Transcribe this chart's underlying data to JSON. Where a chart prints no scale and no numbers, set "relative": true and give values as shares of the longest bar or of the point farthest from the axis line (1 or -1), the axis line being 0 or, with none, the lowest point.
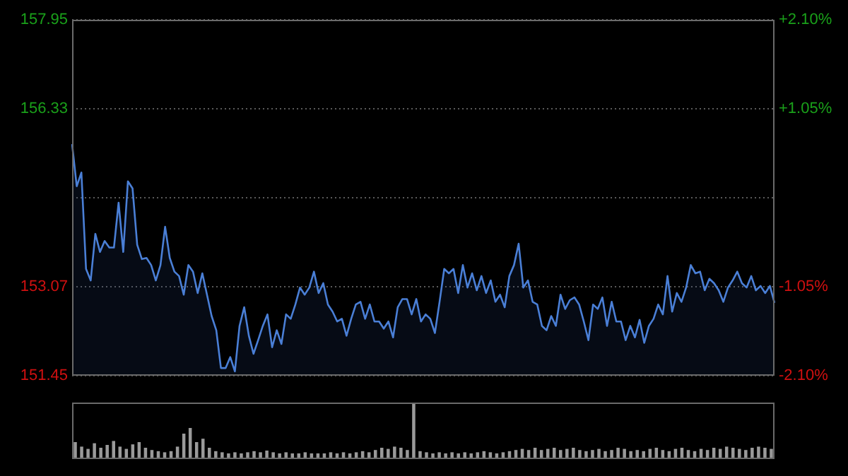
{
  "chart_data": [
    {
      "type": "area",
      "color": "#4a7fd6",
      "categories": [
        null,
        null,
        null,
        null,
        null,
        null,
        null,
        null,
        null,
        null,
        null,
        null,
        null,
        null,
        null,
        null,
        null,
        null,
        null,
        null,
        null,
        null,
        null,
        null,
        null,
        null,
        null,
        null,
        null,
        null,
        null,
        null,
        null,
        null,
        null,
        null,
        null,
        null,
        null,
        null,
        null,
        null,
        null,
        null,
        null,
        null,
        null,
        null,
        null,
        null,
        null,
        null,
        null,
        null,
        null,
        null,
        null,
        null,
        null,
        null,
        null,
        null,
        null,
        null,
        null,
        null,
        null,
        null,
        null,
        null,
        null,
        null,
        null,
        null,
        null,
        null,
        null,
        null,
        null,
        null,
        null,
        null,
        null,
        null,
        null,
        null,
        null,
        null,
        null,
        null,
        null,
        null,
        null,
        null,
        null,
        null,
        null,
        null,
        null,
        null,
        null,
        null,
        null,
        null,
        null,
        null,
        null,
        null,
        null,
        null,
        null,
        null,
        null,
        null,
        null,
        null,
        null,
        null,
        null,
        null,
        null,
        null,
        null,
        null,
        null,
        null,
        null,
        null,
        null,
        null,
        null,
        null,
        null,
        null,
        null,
        null,
        null,
        null,
        null,
        null,
        null,
        null,
        null,
        null,
        null,
        null,
        null,
        null,
        null,
        null,
        null,
        null
      ],
      "values": [
        155.68,
        154.91,
        155.16,
        153.4,
        153.19,
        154.04,
        153.71,
        153.91,
        153.79,
        153.79,
        154.61,
        153.71,
        155.0,
        154.87,
        153.84,
        153.58,
        153.6,
        153.47,
        153.19,
        153.47,
        154.17,
        153.6,
        153.35,
        153.27,
        152.93,
        153.47,
        153.35,
        152.96,
        153.32,
        152.93,
        152.54,
        152.28,
        151.59,
        151.59,
        151.79,
        151.53,
        152.36,
        152.7,
        152.18,
        151.85,
        152.1,
        152.36,
        152.57,
        151.97,
        152.28,
        152.03,
        152.57,
        152.49,
        152.75,
        153.06,
        152.93,
        153.06,
        153.35,
        152.96,
        153.14,
        152.75,
        152.62,
        152.44,
        152.49,
        152.18,
        152.49,
        152.75,
        152.8,
        152.49,
        152.75,
        152.44,
        152.44,
        152.31,
        152.44,
        152.15,
        152.7,
        152.85,
        152.85,
        152.57,
        152.85,
        152.44,
        152.57,
        152.49,
        152.23,
        152.8,
        153.4,
        153.32,
        153.4,
        152.96,
        153.47,
        153.06,
        153.32,
        153.01,
        153.27,
        152.96,
        153.19,
        152.8,
        152.93,
        152.7,
        153.27,
        153.47,
        153.86,
        153.06,
        153.19,
        152.8,
        152.75,
        152.36,
        152.28,
        152.54,
        152.36,
        152.93,
        152.67,
        152.83,
        152.88,
        152.75,
        152.44,
        152.1,
        152.75,
        152.67,
        152.88,
        152.36,
        152.8,
        152.44,
        152.44,
        152.1,
        152.36,
        152.15,
        152.47,
        152.05,
        152.36,
        152.49,
        152.75,
        152.57,
        153.27,
        152.62,
        152.96,
        152.8,
        153.06,
        153.47,
        153.32,
        153.35,
        153.01,
        153.22,
        153.14,
        153.01,
        152.8,
        153.06,
        153.19,
        153.35,
        153.14,
        153.06,
        153.27,
        153.01,
        153.09,
        152.96,
        153.09,
        152.78
      ],
      "ylim": [
        151.45,
        157.95
      ],
      "yticks": [
        151.45,
        153.07,
        {
          "value": 154.7,
          "label": null
        },
        156.33,
        157.95
      ],
      "y2lim": [
        -2.1,
        2.1
      ],
      "y2ticks": [
        {
          "value": -2.1,
          "label": "-2.10%"
        },
        {
          "value": -1.05,
          "label": "-1.05%"
        },
        {
          "value": 1.05,
          "label": "+1.05%"
        },
        {
          "value": 2.1,
          "label": "+2.10%"
        }
      ],
      "grid": "y",
      "tick_labels": "y"
    },
    {
      "type": "bar",
      "relative": true,
      "color": "#9a9a9a",
      "tick_labels": false,
      "categories": [
        null,
        null,
        null,
        null,
        null,
        null,
        null,
        null,
        null,
        null,
        null,
        null,
        null,
        null,
        null,
        null,
        null,
        null,
        null,
        null,
        null,
        null,
        null,
        null,
        null,
        null,
        null,
        null,
        null,
        null,
        null,
        null,
        null,
        null,
        null,
        null,
        null,
        null,
        null,
        null,
        null,
        null,
        null,
        null,
        null,
        null,
        null,
        null,
        null,
        null,
        null,
        null,
        null,
        null,
        null,
        null,
        null,
        null,
        null,
        null,
        null,
        null,
        null,
        null,
        null,
        null,
        null,
        null,
        null,
        null,
        null,
        null,
        null,
        null,
        null,
        null,
        null,
        null,
        null,
        null,
        null,
        null,
        null,
        null,
        null,
        null,
        null,
        null,
        null,
        null,
        null,
        null,
        null,
        null,
        null,
        null,
        null,
        null,
        null,
        null,
        null,
        null,
        null,
        null,
        null,
        null,
        null,
        null,
        null,
        null
      ],
      "values": [
        0.3,
        0.22,
        0.18,
        0.28,
        0.2,
        0.25,
        0.32,
        0.22,
        0.18,
        0.26,
        0.3,
        0.2,
        0.16,
        0.14,
        0.12,
        0.14,
        0.22,
        0.45,
        0.55,
        0.3,
        0.36,
        0.2,
        0.14,
        0.12,
        0.1,
        0.12,
        0.1,
        0.12,
        0.14,
        0.12,
        0.15,
        0.12,
        0.1,
        0.12,
        0.1,
        0.1,
        0.12,
        0.1,
        0.1,
        0.1,
        0.12,
        0.1,
        0.12,
        0.1,
        0.12,
        0.14,
        0.12,
        0.16,
        0.2,
        0.18,
        0.22,
        0.2,
        0.16,
        1,
        0.14,
        0.12,
        0.1,
        0.12,
        0.1,
        0.12,
        0.1,
        0.12,
        0.1,
        0.12,
        0.14,
        0.12,
        0.1,
        0.12,
        0.14,
        0.16,
        0.18,
        0.16,
        0.2,
        0.16,
        0.18,
        0.2,
        0.16,
        0.18,
        0.2,
        0.16,
        0.14,
        0.16,
        0.18,
        0.14,
        0.16,
        0.2,
        0.18,
        0.14,
        0.16,
        0.14,
        0.18,
        0.2,
        0.16,
        0.14,
        0.18,
        0.2,
        0.16,
        0.14,
        0.18,
        0.16,
        0.2,
        0.18,
        0.22,
        0.2,
        0.18,
        0.16,
        0.2,
        0.22,
        0.2,
        0.18
      ]
    }
  ]
}
